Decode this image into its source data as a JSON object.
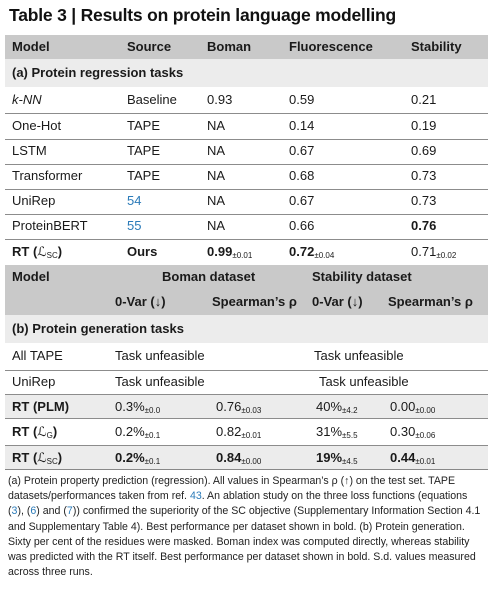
{
  "title": "Table 3 | Results on protein language modelling",
  "part_a": {
    "headers": [
      "Model",
      "Source",
      "Boman",
      "Fluorescence",
      "Stability"
    ],
    "section_label": "(a) Protein regression tasks",
    "rows": [
      {
        "model": "k-NN",
        "source": "Baseline",
        "boman": "0.93",
        "fluor": "0.59",
        "stab": "0.21"
      },
      {
        "model": "One-Hot",
        "source": "TAPE",
        "boman": "NA",
        "fluor": "0.14",
        "stab": "0.19"
      },
      {
        "model": "LSTM",
        "source": "TAPE",
        "boman": "NA",
        "fluor": "0.67",
        "stab": "0.69"
      },
      {
        "model": "Transformer",
        "source": "TAPE",
        "boman": "NA",
        "fluor": "0.68",
        "stab": "0.73"
      },
      {
        "model": "UniRep",
        "source": "54",
        "boman": "NA",
        "fluor": "0.67",
        "stab": "0.73"
      },
      {
        "model": "ProteinBERT",
        "source": "55",
        "boman": "NA",
        "fluor": "0.66",
        "stab": "0.76"
      },
      {
        "model": "RT (",
        "model_sym": "ℒ",
        "model_sub": "SC",
        "model_end": ")",
        "source": "Ours",
        "boman": "0.99",
        "boman_sd": "±0.01",
        "fluor": "0.72",
        "fluor_sd": "±0.04",
        "stab": "0.71",
        "stab_sd": "±0.02"
      }
    ]
  },
  "part_b": {
    "header1": {
      "model": "Model",
      "boman": "Boman dataset",
      "stability": "Stability dataset"
    },
    "header2": {
      "ovar": "0-Var (↓)",
      "spearman": "Spearman’s ρ",
      "ovar2": "0-Var (↓)",
      "spearman2": "Spearman’s ρ"
    },
    "section_label": "(b) Protein generation tasks",
    "rows": [
      {
        "model": "All TAPE",
        "boman": "Task unfeasible",
        "stab": "Task unfeasible"
      },
      {
        "model": "UniRep",
        "boman": "Task unfeasible",
        "stab": "Task unfeasible"
      },
      {
        "model": "RT (PLM)",
        "c1": "0.3%",
        "c1_sd": "±0.0",
        "c2": "0.76",
        "c2_sd": "±0.03",
        "c3": "40%",
        "c3_sd": "±4.2",
        "c4": "0.00",
        "c4_sd": "±0.00"
      },
      {
        "model": "RT (",
        "model_sym": "ℒ",
        "model_sub": "G",
        "model_end": ")",
        "c1": "0.2%",
        "c1_sd": "±0.1",
        "c2": "0.82",
        "c2_sd": "±0.01",
        "c3": "31%",
        "c3_sd": "±5.5",
        "c4": "0.30",
        "c4_sd": "±0.06"
      },
      {
        "model": "RT (",
        "model_sym": "ℒ",
        "model_sub": "SC",
        "model_end": ")",
        "c1": "0.2%",
        "c1_sd": "±0.1",
        "c2": "0.84",
        "c2_sd": "±0.00",
        "c3": "19%",
        "c3_sd": "±4.5",
        "c4": "0.44",
        "c4_sd": "±0.01"
      }
    ]
  },
  "caption": {
    "t1": "(a) Protein property prediction (regression). All values in Spearman’s ρ (↑) on the test set. TAPE datasets/performances taken from ref. ",
    "ref43": "43",
    "t2": ". An ablation study on the three loss functions (equations (",
    "eq3": "3",
    "t3": "), (",
    "eq6": "6",
    "t4": ") and (",
    "eq7": "7",
    "t5": ")) confirmed the superiority of the SC objective (Supplementary Information Section 4.1 and Supplementary Table 4). Best performance per dataset shown in bold. (b) Protein generation. Sixty per cent of the residues were masked. Boman index was computed directly, whereas stability was predicted with the RT itself. Best performance per dataset shown in bold. S.d. values measured across three runs."
  }
}
